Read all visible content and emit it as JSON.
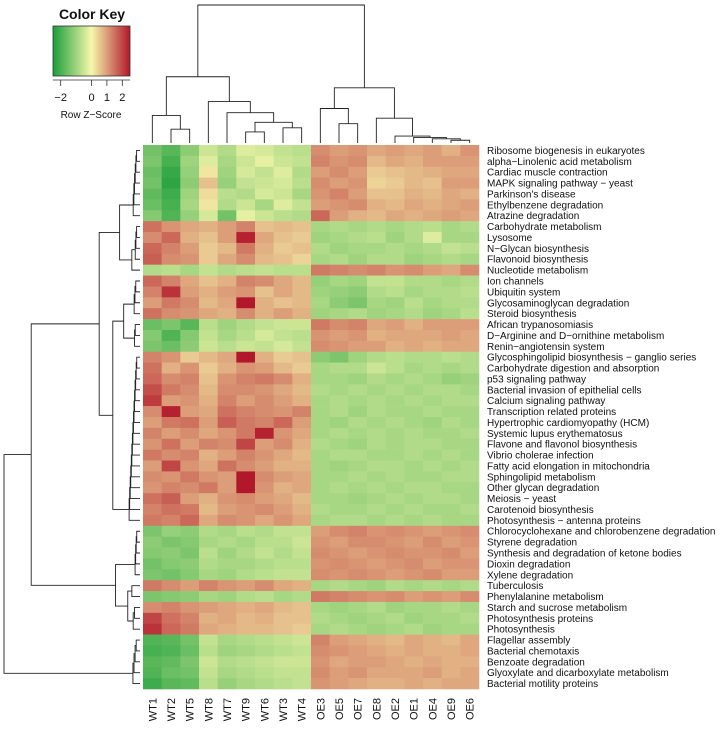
{
  "chart_data": {
    "type": "heatmap",
    "title": "",
    "color_key": {
      "title": "Color Key",
      "label": "Row Z−Score",
      "ticks": [
        "−2",
        "0",
        "1",
        "2"
      ],
      "tick_values": [
        -2,
        0,
        1,
        2
      ],
      "range": [
        -2.5,
        2.5
      ],
      "colors": [
        "#1b9e3a",
        "#f7f7ac",
        "#b2182b"
      ]
    },
    "columns": [
      "WT1",
      "WT2",
      "WT5",
      "WT8",
      "WT7",
      "WT9",
      "WT6",
      "WT3",
      "WT4",
      "OE3",
      "OE5",
      "OE7",
      "OE8",
      "OE2",
      "OE1",
      "OE4",
      "OE9",
      "OE6"
    ],
    "rows": [
      "Ribosome biogenesis in eukaryotes",
      "alpha−Linolenic acid metabolism",
      "Cardiac muscle contraction",
      "MAPK signaling pathway − yeast",
      "Parkinson's disease",
      "Ethylbenzene degradation",
      "Atrazine degradation",
      "Carbohydrate metabolism",
      "Lysosome",
      "N−Glycan biosynthesis",
      "Flavonoid biosynthesis",
      "Nucleotide metabolism",
      "Ion channels",
      "Ubiquitin system",
      "Glycosaminoglycan degradation",
      "Steroid biosynthesis",
      "African trypanosomiasis",
      "D−Arginine and D−ornithine metabolism",
      "Renin−angiotensin system",
      "Glycosphingolipid biosynthesis − ganglio series",
      "Carbohydrate digestion and absorption",
      "p53 signaling pathway",
      "Bacterial invasion of epithelial cells",
      "Calcium signaling pathway",
      "Transcription related proteins",
      "Hypertrophic cardiomyopathy (HCM)",
      "Systemic lupus erythematosus",
      "Flavone and flavonol biosynthesis",
      "Vibrio cholerae infection",
      "Fatty acid elongation in mitochondria",
      "Sphingolipid metabolism",
      "Other glycan degradation",
      "Meiosis − yeast",
      "Carotenoid biosynthesis",
      "Photosynthesis − antenna proteins",
      "Chlorocyclohexane and chlorobenzene degradation",
      "Styrene degradation",
      "Synthesis and degradation of ketone bodies",
      "Dioxin degradation",
      "Xylene degradation",
      "Tuberculosis",
      "Phenylalanine metabolism",
      "Starch and sucrose metabolism",
      "Photosynthesis proteins",
      "Photosynthesis",
      "Flagellar assembly",
      "Bacterial chemotaxis",
      "Benzoate degradation",
      "Glyoxylate and dicarboxylate metabolism",
      "Bacterial motility proteins"
    ],
    "values": [
      [
        -1.5,
        -1.8,
        -1.2,
        -0.5,
        -0.8,
        -0.3,
        -0.4,
        -0.6,
        -0.7,
        1.2,
        1.0,
        1.1,
        0.9,
        1.0,
        0.9,
        1.0,
        0.8,
        1.1
      ],
      [
        -1.4,
        -2.0,
        -1.0,
        -0.3,
        -0.9,
        -0.5,
        -0.2,
        -0.5,
        -0.6,
        1.3,
        1.1,
        1.2,
        0.7,
        0.9,
        0.8,
        1.0,
        1.0,
        1.0
      ],
      [
        -1.6,
        -2.2,
        -1.1,
        0.2,
        -1.0,
        -0.4,
        -0.6,
        -0.3,
        -0.8,
        1.0,
        1.2,
        1.0,
        0.5,
        0.6,
        0.7,
        0.8,
        0.9,
        0.9
      ],
      [
        -1.5,
        -2.3,
        -1.2,
        0.6,
        -1.1,
        -0.6,
        -0.5,
        -0.4,
        -0.7,
        1.2,
        1.0,
        1.1,
        0.4,
        0.5,
        0.7,
        0.6,
        1.0,
        1.0
      ],
      [
        -1.7,
        -2.1,
        -1.0,
        0.3,
        -0.7,
        -0.8,
        -0.4,
        -0.5,
        -0.9,
        1.1,
        1.3,
        1.0,
        0.6,
        0.6,
        0.8,
        0.7,
        0.9,
        0.8
      ],
      [
        -1.6,
        -2.0,
        -0.9,
        0.2,
        -0.8,
        -0.5,
        -0.9,
        -0.3,
        -0.6,
        1.0,
        1.1,
        1.2,
        0.8,
        0.7,
        0.9,
        0.8,
        0.9,
        1.0
      ],
      [
        -1.3,
        -1.9,
        -1.1,
        -0.4,
        -1.5,
        -0.2,
        -0.5,
        -0.7,
        -0.8,
        1.6,
        1.0,
        0.8,
        0.7,
        0.9,
        0.8,
        0.9,
        1.0,
        0.9
      ],
      [
        1.5,
        1.1,
        0.9,
        0.8,
        1.0,
        1.3,
        0.6,
        0.7,
        0.6,
        -0.9,
        -0.8,
        -0.9,
        -0.8,
        -0.9,
        -0.8,
        -0.7,
        -0.9,
        -0.8
      ],
      [
        1.2,
        1.6,
        0.8,
        0.6,
        1.0,
        2.4,
        0.9,
        0.6,
        0.5,
        -1.0,
        -0.9,
        -0.8,
        -0.7,
        -1.0,
        -0.8,
        -0.3,
        -0.9,
        -0.9
      ],
      [
        1.6,
        1.3,
        1.0,
        0.5,
        0.7,
        1.4,
        0.8,
        0.5,
        0.6,
        -0.8,
        -1.0,
        -0.9,
        -0.9,
        -0.8,
        -0.9,
        -0.8,
        -0.6,
        -0.7
      ],
      [
        1.7,
        1.2,
        1.1,
        0.5,
        0.9,
        1.2,
        0.7,
        0.6,
        0.4,
        -0.9,
        -0.8,
        -1.0,
        -0.8,
        -0.8,
        -1.0,
        -0.9,
        -0.8,
        -0.9
      ],
      [
        -0.8,
        -0.7,
        -0.9,
        -0.6,
        -0.8,
        -0.7,
        -0.6,
        -0.7,
        -0.7,
        1.4,
        1.3,
        1.2,
        1.3,
        1.1,
        1.2,
        1.0,
        0.9,
        1.2
      ],
      [
        1.6,
        1.3,
        0.9,
        0.6,
        0.8,
        1.3,
        1.2,
        0.9,
        0.7,
        -1.1,
        -0.9,
        -1.0,
        -0.6,
        -0.6,
        -0.8,
        -0.8,
        -0.9,
        -0.8
      ],
      [
        1.3,
        2.2,
        1.0,
        0.8,
        1.0,
        1.1,
        0.6,
        0.9,
        0.7,
        -1.0,
        -1.1,
        -1.2,
        -0.8,
        -0.7,
        -0.9,
        -0.8,
        -0.8,
        -0.7
      ],
      [
        1.0,
        1.4,
        1.2,
        0.7,
        0.9,
        2.5,
        0.8,
        0.6,
        0.7,
        -0.9,
        -1.2,
        -1.4,
        -0.9,
        -1.0,
        -0.7,
        -0.9,
        -0.8,
        -0.8
      ],
      [
        1.5,
        1.2,
        1.1,
        0.9,
        0.8,
        1.2,
        0.8,
        1.0,
        0.8,
        -1.0,
        -0.9,
        -0.8,
        -1.0,
        -0.9,
        -0.8,
        -1.0,
        -0.9,
        -0.7
      ],
      [
        -1.6,
        -1.4,
        -1.8,
        -0.7,
        -1.0,
        -0.8,
        -0.6,
        -0.5,
        -0.5,
        1.4,
        1.2,
        1.3,
        0.9,
        1.0,
        0.8,
        1.0,
        1.0,
        1.0
      ],
      [
        -1.3,
        -1.9,
        -1.3,
        -0.6,
        -0.9,
        -0.7,
        -0.4,
        -0.6,
        -0.7,
        1.1,
        1.0,
        1.1,
        0.8,
        0.9,
        0.9,
        0.9,
        1.0,
        0.9
      ],
      [
        -1.4,
        -1.6,
        -1.2,
        -0.5,
        -0.7,
        -0.5,
        -0.6,
        -0.4,
        -0.6,
        1.2,
        1.1,
        1.0,
        1.0,
        0.8,
        0.9,
        0.8,
        0.9,
        0.9
      ],
      [
        1.3,
        1.1,
        0.5,
        0.7,
        0.9,
        2.6,
        0.8,
        0.5,
        0.6,
        -1.2,
        -1.4,
        -1.0,
        -0.8,
        -0.7,
        -0.8,
        -0.8,
        -0.7,
        -0.8
      ],
      [
        1.5,
        0.8,
        1.1,
        0.5,
        0.8,
        1.1,
        1.0,
        0.7,
        0.5,
        -0.9,
        -0.8,
        -0.8,
        -0.5,
        -0.7,
        -0.9,
        -0.8,
        -0.9,
        -0.8
      ],
      [
        1.6,
        1.2,
        1.3,
        0.6,
        1.1,
        1.3,
        1.4,
        1.2,
        0.8,
        -0.9,
        -0.9,
        -1.0,
        -0.8,
        -0.9,
        -0.8,
        -0.9,
        -1.1,
        -1.0
      ],
      [
        1.9,
        1.4,
        1.2,
        0.7,
        1.2,
        1.2,
        1.1,
        0.9,
        0.7,
        -0.8,
        -0.9,
        -0.8,
        -0.9,
        -0.8,
        -0.9,
        -0.8,
        -0.8,
        -0.9
      ],
      [
        2.1,
        1.0,
        1.1,
        0.8,
        1.3,
        1.0,
        1.2,
        1.0,
        0.8,
        -0.9,
        -0.8,
        -0.9,
        -0.8,
        -0.9,
        -0.8,
        -0.9,
        -0.8,
        -0.8
      ],
      [
        1.2,
        2.4,
        1.0,
        0.9,
        1.5,
        1.3,
        1.2,
        1.1,
        1.3,
        -0.9,
        -0.8,
        -1.0,
        -0.8,
        -0.9,
        -0.9,
        -0.8,
        -0.9,
        -0.9
      ],
      [
        1.0,
        1.4,
        1.5,
        1.0,
        1.7,
        1.4,
        1.3,
        1.6,
        1.0,
        -0.9,
        -1.0,
        -0.8,
        -0.9,
        -0.8,
        -0.9,
        -1.0,
        -0.8,
        -0.9
      ],
      [
        1.3,
        1.0,
        1.2,
        0.9,
        1.1,
        1.4,
        2.4,
        1.1,
        0.9,
        -0.9,
        -0.8,
        -0.9,
        -0.8,
        -0.9,
        -0.8,
        -0.9,
        -0.9,
        -0.8
      ],
      [
        1.1,
        1.5,
        1.0,
        1.3,
        1.2,
        2.0,
        1.0,
        1.2,
        0.8,
        -0.8,
        -0.9,
        -1.0,
        -0.8,
        -0.9,
        -0.8,
        -0.8,
        -0.9,
        -0.9
      ],
      [
        1.4,
        1.2,
        1.3,
        0.8,
        1.0,
        1.3,
        1.1,
        0.9,
        0.7,
        -0.9,
        -0.8,
        -0.8,
        -0.9,
        -0.9,
        -0.8,
        -0.9,
        -0.8,
        -0.9
      ],
      [
        1.0,
        2.0,
        1.1,
        0.9,
        1.5,
        1.2,
        1.0,
        0.8,
        0.8,
        -0.9,
        -1.0,
        -0.9,
        -0.8,
        -0.8,
        -0.9,
        -0.8,
        -0.9,
        -0.8
      ],
      [
        1.2,
        1.1,
        1.4,
        1.1,
        1.0,
        2.6,
        1.2,
        1.0,
        0.9,
        -0.9,
        -0.9,
        -0.8,
        -0.9,
        -0.8,
        -0.9,
        -0.9,
        -0.8,
        -0.8
      ],
      [
        1.1,
        1.3,
        1.2,
        1.4,
        1.0,
        2.5,
        1.1,
        0.8,
        0.9,
        -0.9,
        -0.8,
        -0.9,
        -0.8,
        -0.9,
        -0.8,
        -0.8,
        -0.9,
        -0.9
      ],
      [
        1.5,
        1.7,
        1.0,
        0.8,
        1.1,
        1.2,
        1.0,
        0.9,
        0.7,
        -0.9,
        -0.9,
        -1.0,
        -0.9,
        -0.8,
        -0.9,
        -0.8,
        -0.8,
        -0.9
      ],
      [
        1.3,
        1.5,
        1.4,
        0.7,
        1.0,
        1.1,
        1.2,
        1.0,
        0.8,
        -0.8,
        -0.9,
        -0.9,
        -0.8,
        -0.9,
        -0.8,
        -0.9,
        -0.9,
        -0.8
      ],
      [
        1.4,
        1.3,
        1.6,
        0.9,
        1.2,
        1.1,
        0.9,
        1.1,
        0.9,
        -0.9,
        -0.8,
        -0.8,
        -0.9,
        -0.8,
        -0.9,
        -0.8,
        -0.9,
        -0.9
      ],
      [
        -1.4,
        -1.1,
        -1.2,
        -0.8,
        -0.9,
        -0.7,
        -0.8,
        -0.6,
        -0.6,
        1.0,
        1.2,
        1.3,
        1.1,
        1.2,
        1.1,
        1.0,
        1.1,
        1.2
      ],
      [
        -1.2,
        -1.4,
        -1.3,
        -0.9,
        -0.8,
        -0.9,
        -0.7,
        -0.7,
        -0.5,
        1.1,
        1.0,
        1.2,
        1.2,
        1.1,
        1.0,
        1.2,
        1.0,
        1.1
      ],
      [
        -1.3,
        -1.2,
        -1.4,
        -0.7,
        -1.0,
        -0.8,
        -0.6,
        -0.8,
        -0.6,
        1.2,
        1.1,
        1.0,
        1.1,
        1.2,
        1.1,
        1.1,
        1.2,
        1.0
      ],
      [
        -1.5,
        -1.3,
        -1.2,
        -0.8,
        -0.9,
        -0.9,
        -0.8,
        -0.7,
        -0.7,
        1.1,
        1.2,
        1.1,
        1.0,
        1.1,
        1.2,
        1.0,
        1.1,
        1.1
      ],
      [
        -1.4,
        -1.5,
        -1.3,
        -0.9,
        -1.0,
        -0.8,
        -0.7,
        -0.6,
        -0.6,
        1.2,
        1.1,
        1.2,
        1.1,
        1.0,
        1.1,
        1.2,
        1.0,
        1.0
      ],
      [
        1.4,
        1.2,
        1.0,
        1.3,
        1.1,
        1.0,
        1.2,
        0.9,
        0.8,
        -0.9,
        -0.8,
        -0.9,
        -1.0,
        -0.8,
        -0.9,
        -0.8,
        -0.9,
        -0.8
      ],
      [
        -1.4,
        -1.3,
        -1.2,
        -0.9,
        -1.0,
        -0.8,
        -0.7,
        -0.9,
        -0.8,
        1.4,
        1.3,
        1.2,
        1.1,
        1.2,
        1.0,
        1.1,
        1.0,
        1.2
      ],
      [
        1.2,
        1.3,
        1.1,
        1.0,
        0.9,
        0.8,
        0.9,
        0.7,
        0.6,
        -0.9,
        -1.0,
        -0.9,
        -0.8,
        -1.0,
        -0.9,
        -0.9,
        -0.8,
        -0.9
      ],
      [
        2.0,
        1.5,
        1.3,
        0.8,
        0.9,
        0.7,
        0.8,
        0.6,
        0.6,
        -0.8,
        -0.9,
        -1.0,
        -0.9,
        -0.8,
        -1.0,
        -0.9,
        -0.9,
        -0.8
      ],
      [
        2.2,
        1.6,
        1.4,
        0.9,
        0.8,
        0.7,
        0.7,
        0.6,
        0.5,
        -0.9,
        -0.8,
        -0.9,
        -1.0,
        -0.9,
        -0.8,
        -1.0,
        -0.9,
        -0.9
      ],
      [
        -1.9,
        -1.8,
        -1.5,
        -0.6,
        -0.9,
        -0.8,
        -0.7,
        -0.6,
        -0.5,
        1.3,
        1.0,
        0.9,
        0.8,
        0.7,
        0.9,
        0.8,
        0.7,
        0.9
      ],
      [
        -2.0,
        -1.9,
        -1.6,
        -0.7,
        -1.0,
        -0.9,
        -0.8,
        -0.7,
        -0.6,
        1.2,
        1.1,
        1.0,
        0.9,
        0.8,
        0.9,
        0.8,
        0.8,
        0.9
      ],
      [
        -1.8,
        -1.7,
        -1.4,
        -0.5,
        -0.8,
        -0.7,
        -0.6,
        -0.5,
        -0.5,
        1.1,
        0.9,
        1.0,
        1.0,
        0.9,
        0.8,
        0.9,
        0.8,
        0.8
      ],
      [
        -1.9,
        -1.6,
        -1.5,
        -0.6,
        -0.9,
        -0.8,
        -0.7,
        -0.6,
        -0.6,
        1.2,
        1.0,
        1.1,
        0.9,
        0.9,
        0.9,
        1.0,
        0.8,
        0.9
      ],
      [
        -2.1,
        -1.8,
        -1.7,
        -0.7,
        -1.1,
        -0.9,
        -0.8,
        -0.7,
        -0.6,
        1.1,
        1.0,
        0.9,
        0.8,
        0.8,
        0.9,
        0.8,
        0.9,
        0.9
      ]
    ]
  }
}
